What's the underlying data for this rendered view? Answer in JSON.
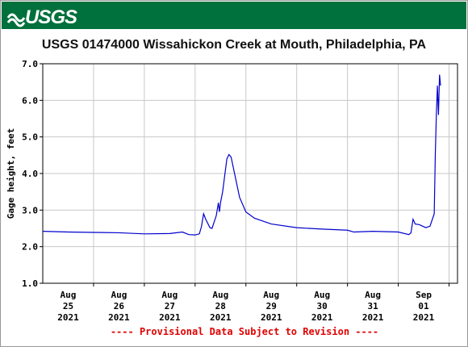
{
  "header": {
    "logo": "USGS"
  },
  "chart_data": {
    "type": "line",
    "title": "USGS 01474000 Wissahickon Creek at Mouth, Philadelphia, PA",
    "y_label": "Gage height, feet",
    "footer": "---- Provisional Data Subject to Revision ----",
    "grid": true,
    "xlim": [
      "2021-08-25T00:00",
      "2021-09-02T04:00"
    ],
    "xticks": [
      {
        "value": "2021-08-25",
        "label": [
          "Aug",
          "25",
          "2021"
        ]
      },
      {
        "value": "2021-08-26",
        "label": [
          "Aug",
          "26",
          "2021"
        ]
      },
      {
        "value": "2021-08-27",
        "label": [
          "Aug",
          "27",
          "2021"
        ]
      },
      {
        "value": "2021-08-28",
        "label": [
          "Aug",
          "28",
          "2021"
        ]
      },
      {
        "value": "2021-08-29",
        "label": [
          "Aug",
          "29",
          "2021"
        ]
      },
      {
        "value": "2021-08-30",
        "label": [
          "Aug",
          "30",
          "2021"
        ]
      },
      {
        "value": "2021-08-31",
        "label": [
          "Aug",
          "31",
          "2021"
        ]
      },
      {
        "value": "2021-09-01",
        "label": [
          "Sep",
          "01",
          "2021"
        ]
      }
    ],
    "ylim": [
      1,
      7
    ],
    "yticks": [
      {
        "value": 1,
        "label": "1.0"
      },
      {
        "value": 2,
        "label": "2.0"
      },
      {
        "value": 3,
        "label": "3.0"
      },
      {
        "value": 4,
        "label": "4.0"
      },
      {
        "value": 5,
        "label": "5.0"
      },
      {
        "value": 6,
        "label": "6.0"
      },
      {
        "value": 7,
        "label": "7.0"
      }
    ],
    "series": [
      {
        "color": "#0000cc",
        "x": [
          "2021-08-25T00:00",
          "2021-08-25T12:00",
          "2021-08-26T00:00",
          "2021-08-26T12:00",
          "2021-08-27T00:00",
          "2021-08-27T12:00",
          "2021-08-27T18:00",
          "2021-08-27T21:00",
          "2021-08-28T00:00",
          "2021-08-28T02:00",
          "2021-08-28T03:00",
          "2021-08-28T04:00",
          "2021-08-28T05:00",
          "2021-08-28T07:00",
          "2021-08-28T08:00",
          "2021-08-28T10:00",
          "2021-08-28T11:00",
          "2021-08-28T11:30",
          "2021-08-28T12:00",
          "2021-08-28T13:00",
          "2021-08-28T15:00",
          "2021-08-28T16:00",
          "2021-08-28T17:00",
          "2021-08-28T19:00",
          "2021-08-28T21:00",
          "2021-08-29T00:00",
          "2021-08-29T04:00",
          "2021-08-29T12:00",
          "2021-08-30T00:00",
          "2021-08-30T12:00",
          "2021-08-31T00:00",
          "2021-08-31T03:00",
          "2021-08-31T12:00",
          "2021-09-01T00:00",
          "2021-09-01T05:00",
          "2021-09-01T06:00",
          "2021-09-01T07:00",
          "2021-09-01T08:00",
          "2021-09-01T10:00",
          "2021-09-01T13:00",
          "2021-09-01T15:00",
          "2021-09-01T17:00",
          "2021-09-01T17:30",
          "2021-09-01T18:00",
          "2021-09-01T18:30",
          "2021-09-01T19:00",
          "2021-09-01T19:30",
          "2021-09-01T20:00"
        ],
        "values": [
          2.42,
          2.4,
          2.39,
          2.38,
          2.35,
          2.36,
          2.4,
          2.33,
          2.32,
          2.35,
          2.55,
          2.9,
          2.75,
          2.52,
          2.5,
          2.85,
          3.2,
          2.95,
          3.2,
          3.5,
          4.4,
          4.52,
          4.45,
          3.9,
          3.35,
          2.95,
          2.78,
          2.62,
          2.52,
          2.48,
          2.45,
          2.4,
          2.42,
          2.4,
          2.33,
          2.38,
          2.75,
          2.62,
          2.6,
          2.52,
          2.56,
          2.9,
          4.5,
          5.6,
          6.4,
          5.6,
          6.7,
          6.4
        ]
      }
    ]
  }
}
